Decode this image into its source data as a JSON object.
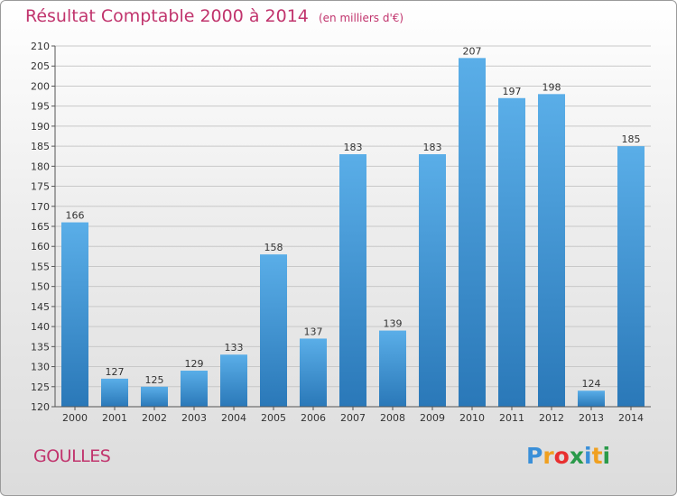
{
  "title": "Résultat Comptable 2000 à 2014",
  "subtitle": "(en milliers d'€)",
  "place": "GOULLES",
  "brand": {
    "text": "Proxiti",
    "letters": [
      "P",
      "r",
      "o",
      "x",
      "i",
      "t",
      "i"
    ],
    "letter_colors": [
      "#3a8fd8",
      "#f0a020",
      "#e83030",
      "#2a9a4a",
      "#3a8fd8",
      "#f0a020",
      "#2a9a4a"
    ]
  },
  "colors": {
    "title": "#c1346d",
    "bar_top": "#5aaee8",
    "bar_bottom": "#2a78b8",
    "grid": "#c8c8c8",
    "axis": "#555555"
  },
  "chart_data": {
    "type": "bar",
    "categories": [
      "2000",
      "2001",
      "2002",
      "2003",
      "2004",
      "2005",
      "2006",
      "2007",
      "2008",
      "2009",
      "2010",
      "2011",
      "2012",
      "2013",
      "2014"
    ],
    "values": [
      166,
      127,
      125,
      129,
      133,
      158,
      137,
      183,
      139,
      183,
      207,
      197,
      198,
      124,
      185
    ],
    "data_labels": [
      "166",
      "127",
      "125",
      "129",
      "133",
      "158",
      "137",
      "183",
      "139",
      "183",
      "207",
      "197",
      "198",
      "124",
      "185"
    ],
    "yticks": [
      "120",
      "125",
      "130",
      "135",
      "140",
      "145",
      "150",
      "155",
      "160",
      "165",
      "170",
      "175",
      "180",
      "185",
      "190",
      "195",
      "200",
      "205",
      "210"
    ],
    "ylim": [
      120,
      210
    ],
    "grid": true,
    "title": "Résultat Comptable 2000 à 2014",
    "xlabel": "",
    "ylabel": ""
  }
}
